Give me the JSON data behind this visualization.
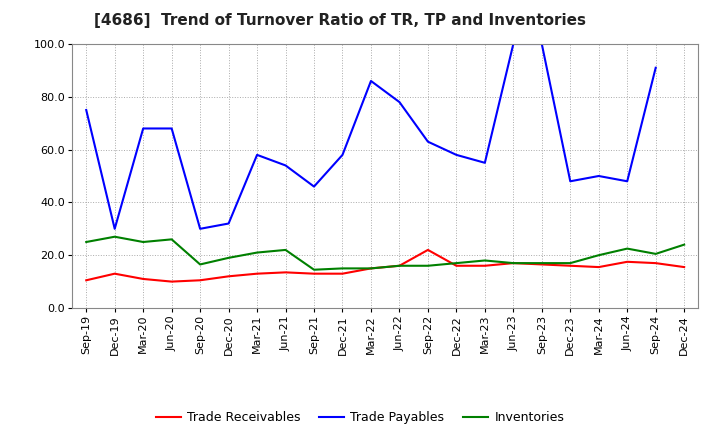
{
  "title": "[4686]  Trend of Turnover Ratio of TR, TP and Inventories",
  "ylim": [
    0.0,
    100.0
  ],
  "yticks": [
    0.0,
    20.0,
    40.0,
    60.0,
    80.0,
    100.0
  ],
  "x_labels": [
    "Sep-19",
    "Dec-19",
    "Mar-20",
    "Jun-20",
    "Sep-20",
    "Dec-20",
    "Mar-21",
    "Jun-21",
    "Sep-21",
    "Dec-21",
    "Mar-22",
    "Jun-22",
    "Sep-22",
    "Dec-22",
    "Mar-23",
    "Jun-23",
    "Sep-23",
    "Dec-23",
    "Mar-24",
    "Jun-24",
    "Sep-24",
    "Dec-24"
  ],
  "trade_receivables": [
    10.5,
    13.0,
    11.0,
    10.0,
    10.5,
    12.0,
    13.0,
    13.5,
    13.0,
    13.0,
    15.0,
    16.0,
    22.0,
    16.0,
    16.0,
    17.0,
    16.5,
    16.0,
    15.5,
    17.5,
    17.0,
    15.5
  ],
  "trade_payables": [
    75.0,
    30.0,
    68.0,
    68.0,
    30.0,
    32.0,
    58.0,
    54.0,
    46.0,
    58.0,
    86.0,
    78.0,
    63.0,
    58.0,
    55.0,
    100.0,
    100.0,
    48.0,
    50.0,
    48.0,
    91.0,
    null
  ],
  "inventories": [
    25.0,
    27.0,
    25.0,
    26.0,
    16.5,
    19.0,
    21.0,
    22.0,
    14.5,
    15.0,
    15.0,
    16.0,
    16.0,
    17.0,
    18.0,
    17.0,
    17.0,
    17.0,
    20.0,
    22.5,
    20.5,
    24.0
  ],
  "tr_color": "#ff0000",
  "tp_color": "#0000ff",
  "inv_color": "#008000",
  "bg_color": "#ffffff",
  "grid_color": "#aaaaaa",
  "title_fontsize": 11,
  "legend_fontsize": 9,
  "tick_fontsize": 8
}
